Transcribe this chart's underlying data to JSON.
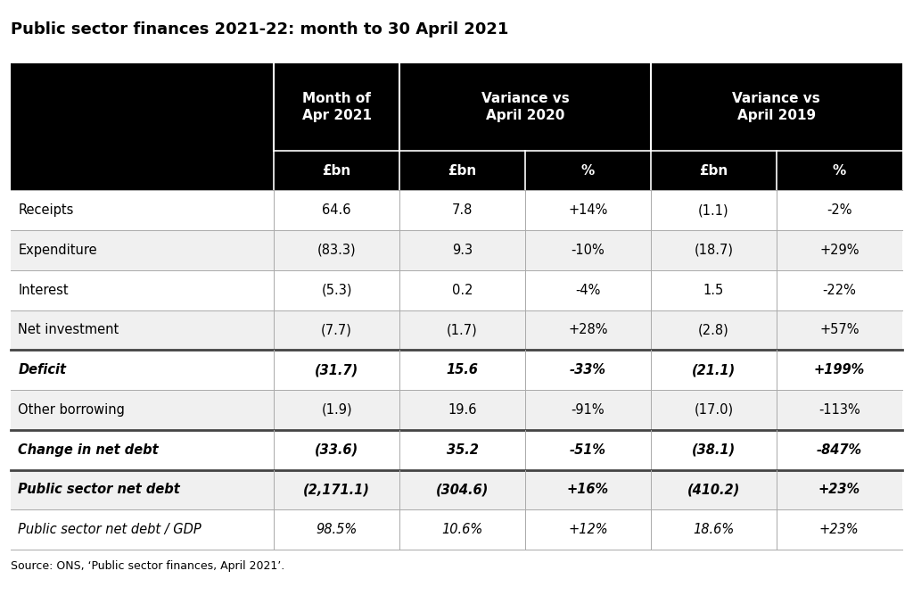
{
  "title": "Public sector finances 2021-22: month to 30 April 2021",
  "source": "Source: ONS, ‘Public sector finances, April 2021’.",
  "col_headers_row2": [
    "£bn",
    "£bn",
    "%",
    "£bn",
    "%"
  ],
  "rows": [
    {
      "label": "Receipts",
      "bold": false,
      "italic": false,
      "values": [
        "64.6",
        "7.8",
        "+14%",
        "(1.1)",
        "-2%"
      ],
      "thick_top": false
    },
    {
      "label": "Expenditure",
      "bold": false,
      "italic": false,
      "values": [
        "(83.3)",
        "9.3",
        "-10%",
        "(18.7)",
        "+29%"
      ],
      "thick_top": false
    },
    {
      "label": "Interest",
      "bold": false,
      "italic": false,
      "values": [
        "(5.3)",
        "0.2",
        "-4%",
        "1.5",
        "-22%"
      ],
      "thick_top": false
    },
    {
      "label": "Net investment",
      "bold": false,
      "italic": false,
      "values": [
        "(7.7)",
        "(1.7)",
        "+28%",
        "(2.8)",
        "+57%"
      ],
      "thick_top": false
    },
    {
      "label": "Deficit",
      "bold": true,
      "italic": true,
      "values": [
        "(31.7)",
        "15.6",
        "-33%",
        "(21.1)",
        "+199%"
      ],
      "thick_top": true
    },
    {
      "label": "Other borrowing",
      "bold": false,
      "italic": false,
      "values": [
        "(1.9)",
        "19.6",
        "-91%",
        "(17.0)",
        "-113%"
      ],
      "thick_top": false
    },
    {
      "label": "Change in net debt",
      "bold": true,
      "italic": true,
      "values": [
        "(33.6)",
        "35.2",
        "-51%",
        "(38.1)",
        "-847%"
      ],
      "thick_top": true
    },
    {
      "label": "Public sector net debt",
      "bold": true,
      "italic": true,
      "values": [
        "(2,171.1)",
        "(304.6)",
        "+16%",
        "(410.2)",
        "+23%"
      ],
      "thick_top": true
    },
    {
      "label": "Public sector net debt / GDP",
      "bold": false,
      "italic": true,
      "values": [
        "98.5%",
        "10.6%",
        "+12%",
        "18.6%",
        "+23%"
      ],
      "thick_top": false
    }
  ],
  "header_bg": "#000000",
  "header_fg": "#ffffff",
  "border_color": "#aaaaaa",
  "thick_border_color": "#444444",
  "fig_bg": "#ffffff",
  "title_fontsize": 13,
  "header_fontsize": 11,
  "data_fontsize": 10.5
}
